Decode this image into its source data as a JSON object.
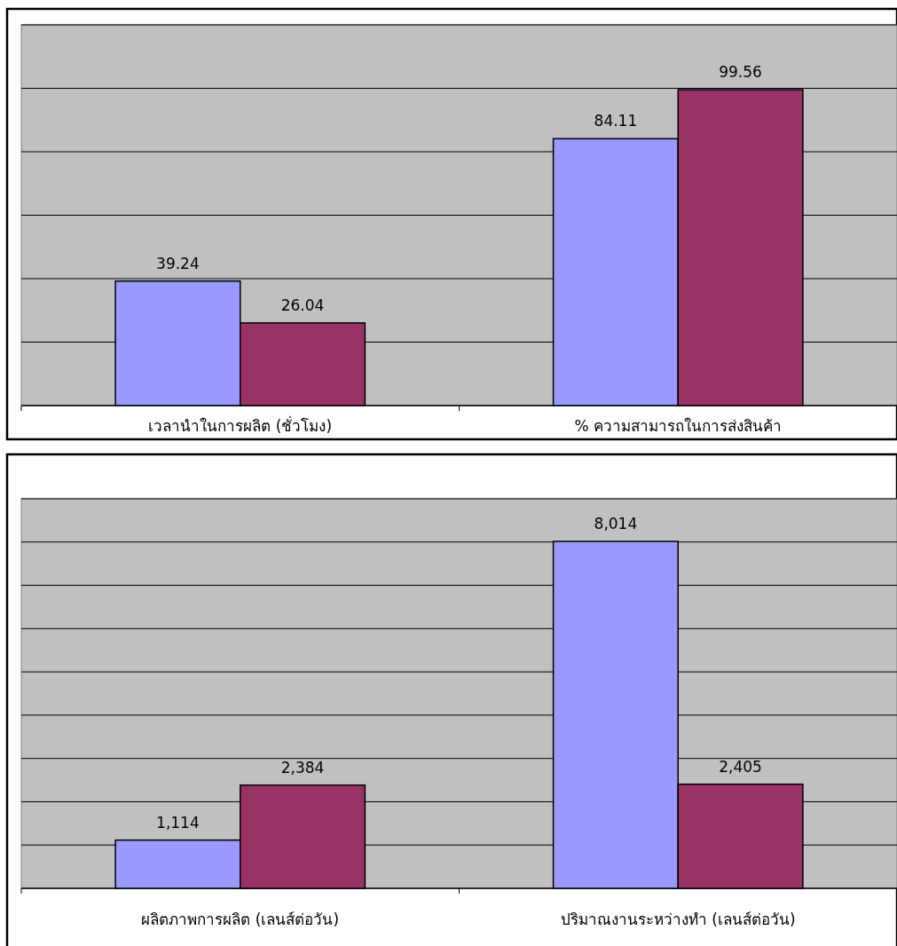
{
  "chart_data": [
    {
      "type": "bar",
      "categories": [
        "เวลานำในการผลิต (ชั่วโมง)",
        "% ความสามารถในการส่งสินค้า"
      ],
      "series": [
        {
          "color": "#9999ff",
          "values": [
            39.24,
            84.11
          ],
          "value_labels": [
            "39.24",
            "84.11"
          ]
        },
        {
          "color": "#993366",
          "values": [
            26.04,
            99.56
          ],
          "value_labels": [
            "26.04",
            "99.56"
          ]
        }
      ],
      "ylim": [
        0,
        120
      ],
      "yticks": [
        {
          "value": 0,
          "label": null
        },
        {
          "value": 20,
          "label": null
        },
        {
          "value": 40,
          "label": null
        },
        {
          "value": 60,
          "label": null
        },
        {
          "value": 80,
          "label": null
        },
        {
          "value": 100,
          "label": null
        },
        {
          "value": 120,
          "label": null
        }
      ],
      "grid": "y",
      "tick_labels": "x"
    },
    {
      "type": "bar",
      "categories": [
        "ผลิตภาพการผลิต (เลนส์ต่อวัน)",
        "ปริมาณงานระหว่างทำ (เลนส์ต่อวัน)"
      ],
      "series": [
        {
          "color": "#9999ff",
          "values": [
            1114,
            8014
          ],
          "value_labels": [
            "1,114",
            "8,014"
          ]
        },
        {
          "color": "#993366",
          "values": [
            2384,
            2405
          ],
          "value_labels": [
            "2,384",
            "2,405"
          ]
        }
      ],
      "ylim": [
        0,
        9000
      ],
      "yticks": [
        {
          "value": 0,
          "label": null
        },
        {
          "value": 1000,
          "label": null
        },
        {
          "value": 2000,
          "label": null
        },
        {
          "value": 3000,
          "label": null
        },
        {
          "value": 4000,
          "label": null
        },
        {
          "value": 5000,
          "label": null
        },
        {
          "value": 6000,
          "label": null
        },
        {
          "value": 7000,
          "label": null
        },
        {
          "value": 8000,
          "label": null
        },
        {
          "value": 9000,
          "label": null
        }
      ],
      "grid": "y",
      "tick_labels": "x"
    }
  ]
}
